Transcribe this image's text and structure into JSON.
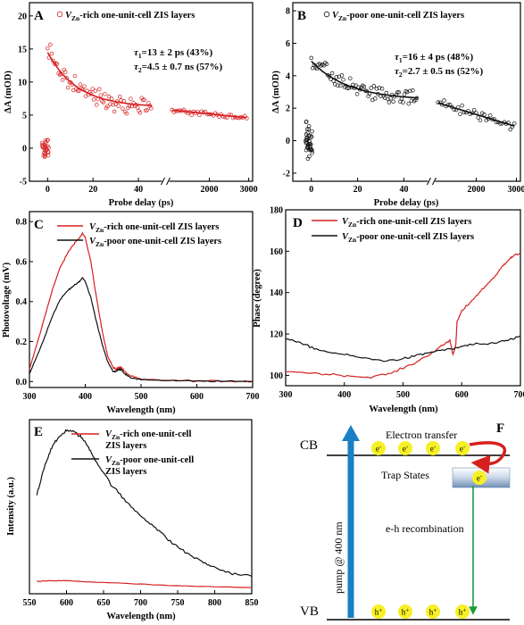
{
  "colors": {
    "red": "#d62020",
    "black": "#111111",
    "blue": "#1a7fc4",
    "green": "#1f9a3a",
    "yellow": "#f6f026"
  },
  "chart_data": [
    {
      "panel": "A",
      "type": "scatter",
      "legend": {
        "prefix": "V",
        "sub": "Zn",
        "text": "-rich one-unit-cell ZIS layers"
      },
      "xlabel": "Probe delay (ps)",
      "ylabel": "ΔA (mOD)",
      "ylim": [
        -5,
        22
      ],
      "xticks_left": [
        "0",
        "20",
        "40"
      ],
      "xticks_right": [
        "2000",
        "3000"
      ],
      "yticks": [
        "-5",
        "0",
        "5",
        "10",
        "15",
        "20"
      ],
      "tau1": {
        "sym": "τ",
        "sub": "1",
        "text": "=13 ± 2 ps (43%)"
      },
      "tau2": {
        "sym": "τ",
        "sub": "2",
        "text": "=4.5 ± 0.7 ns (57%)"
      },
      "fit": {
        "pre_amp": 8.3,
        "pre_tau": 13,
        "offset": 6.2,
        "slow_end": 4.6
      }
    },
    {
      "panel": "B",
      "type": "scatter",
      "legend": {
        "prefix": "V",
        "sub": "Zn",
        "text": "-poor one-unit-cell ZIS layers"
      },
      "xlabel": "Probe delay (ps)",
      "ylabel": "ΔA (mOD)",
      "ylim": [
        -2.5,
        8.5
      ],
      "xticks_left": [
        "0",
        "20",
        "40"
      ],
      "xticks_right": [
        "2000",
        "3000"
      ],
      "yticks": [
        "-2",
        "0",
        "2",
        "4",
        "6",
        "8"
      ],
      "tau1": {
        "sym": "τ",
        "sub": "1",
        "text": "=16 ± 4 ps (48%)"
      },
      "tau2": {
        "sym": "τ",
        "sub": "2",
        "text": "=2.7 ± 0.5 ns (52%)"
      },
      "fit": {
        "pre_amp": 2.4,
        "pre_tau": 16,
        "offset": 2.5,
        "slow_end": 0.9
      }
    },
    {
      "panel": "C",
      "type": "line",
      "xlabel": "Wavelength (nm)",
      "ylabel": "Photovoltage (mV)",
      "xlim": [
        300,
        700
      ],
      "ylim": [
        -0.03,
        0.85
      ],
      "xticks": [
        "300",
        "400",
        "500",
        "600",
        "700"
      ],
      "yticks": [
        "0.0",
        "0.2",
        "0.4",
        "0.6",
        "0.8"
      ],
      "series": [
        {
          "prefix": "V",
          "sub": "Zn",
          "name": "-rich  one-unit-cell ZIS layers",
          "color": "red",
          "x": [
            300,
            320,
            340,
            355,
            370,
            380,
            390,
            395,
            400,
            410,
            420,
            430,
            440,
            450,
            455,
            460,
            465,
            470,
            480,
            500,
            550,
            600,
            650,
            700
          ],
          "y": [
            0.06,
            0.25,
            0.45,
            0.57,
            0.65,
            0.69,
            0.72,
            0.74,
            0.72,
            0.6,
            0.42,
            0.26,
            0.13,
            0.07,
            0.06,
            0.07,
            0.07,
            0.05,
            0.03,
            0.01,
            0.005,
            0.003,
            0.002,
            0.0
          ]
        },
        {
          "prefix": "V",
          "sub": "Zn",
          "name": "-poor one-unit-cell ZIS layers",
          "color": "black",
          "x": [
            300,
            320,
            340,
            355,
            370,
            380,
            390,
            395,
            400,
            410,
            420,
            430,
            440,
            450,
            455,
            460,
            465,
            470,
            480,
            500,
            550,
            600,
            650,
            700
          ],
          "y": [
            0.04,
            0.17,
            0.32,
            0.41,
            0.46,
            0.48,
            0.5,
            0.52,
            0.5,
            0.42,
            0.3,
            0.19,
            0.1,
            0.05,
            0.05,
            0.06,
            0.06,
            0.04,
            0.02,
            0.01,
            0.004,
            0.002,
            0.001,
            0.0
          ]
        }
      ]
    },
    {
      "panel": "D",
      "type": "line",
      "xlabel": "Wavelength (nm)",
      "ylabel": "Phase (degree)",
      "xlim": [
        300,
        700
      ],
      "ylim": [
        95,
        180
      ],
      "xticks": [
        "300",
        "400",
        "500",
        "600",
        "700"
      ],
      "yticks": [
        "100",
        "120",
        "140",
        "160",
        "180"
      ],
      "series": [
        {
          "prefix": "V",
          "sub": "Zn",
          "name": "-rich  one-unit-cell ZIS layers",
          "color": "red",
          "x": [
            300,
            350,
            400,
            440,
            480,
            520,
            550,
            570,
            580,
            585,
            590,
            592,
            600,
            620,
            640,
            660,
            670,
            680,
            690,
            700
          ],
          "y": [
            102,
            101,
            100,
            99,
            101,
            106,
            111,
            115,
            117,
            110,
            115,
            126,
            131,
            137,
            143,
            149,
            153,
            156,
            158,
            159
          ]
        },
        {
          "prefix": "V",
          "sub": "Zn",
          "name": "-poor one-unit-cell ZIS layers",
          "color": "black",
          "x": [
            300,
            330,
            360,
            400,
            440,
            470,
            500,
            530,
            560,
            590,
            600,
            620,
            640,
            660,
            680,
            700
          ],
          "y": [
            118,
            115,
            112,
            110,
            108,
            107,
            108,
            110,
            112,
            113,
            114,
            115,
            115,
            116,
            117,
            119
          ]
        }
      ]
    },
    {
      "panel": "E",
      "type": "line",
      "xlabel": "Wavelength (nm)",
      "ylabel": "Intensity (a.u.)",
      "xlim": [
        550,
        850
      ],
      "xticks": [
        "550",
        "600",
        "650",
        "700",
        "750",
        "800",
        "850"
      ],
      "series": [
        {
          "prefix": "V",
          "sub": "Zn",
          "name1": "-rich  one-unit-cell",
          "name2": "ZIS layers",
          "color": "red",
          "x": [
            560,
            580,
            600,
            620,
            650,
            700,
            750,
            800,
            850
          ],
          "y": [
            0.07,
            0.075,
            0.075,
            0.07,
            0.065,
            0.055,
            0.045,
            0.04,
            0.035
          ]
        },
        {
          "prefix": "V",
          "sub": "Zn",
          "name1": "-poor one-unit-cell",
          "name2": "ZIS layers",
          "color": "black",
          "x": [
            560,
            570,
            580,
            590,
            600,
            610,
            620,
            630,
            640,
            660,
            680,
            700,
            720,
            740,
            760,
            780,
            800,
            820,
            850
          ],
          "y": [
            0.57,
            0.73,
            0.84,
            0.9,
            0.94,
            0.93,
            0.9,
            0.84,
            0.76,
            0.63,
            0.53,
            0.45,
            0.38,
            0.3,
            0.24,
            0.19,
            0.15,
            0.12,
            0.1
          ]
        }
      ]
    }
  ],
  "panelF": {
    "label": "F",
    "cb": "CB",
    "vb": "VB",
    "electron_transfer": "Electron transfer",
    "trap_states": "Trap States",
    "pump": "pump @ 400 nm",
    "recombination": "e-h recombination",
    "electron": "e",
    "electron_sign": "-",
    "hole": "h",
    "hole_sign": "+"
  }
}
